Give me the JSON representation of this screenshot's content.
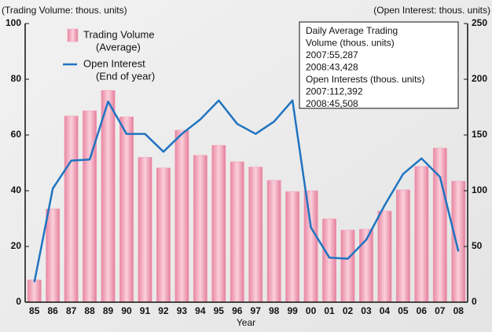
{
  "chart_data": {
    "type": "bar-line",
    "y_label": "(Trading Volume: thous. units)",
    "y2_label": "(Open Interest: thous. units)",
    "x_label": "Year",
    "categories": [
      "85",
      "86",
      "87",
      "88",
      "89",
      "90",
      "91",
      "92",
      "93",
      "94",
      "95",
      "96",
      "97",
      "98",
      "99",
      "00",
      "01",
      "02",
      "03",
      "04",
      "05",
      "06",
      "07",
      "08"
    ],
    "series": [
      {
        "name": "Trading Volume",
        "name_note": "(Average)",
        "type": "bar",
        "color": "#f09cb4",
        "axis": "y",
        "values": [
          8,
          33.5,
          66.8,
          68.7,
          76,
          66.5,
          52,
          48.2,
          61.7,
          52.7,
          56.3,
          50.4,
          48.5,
          43.7,
          39.7,
          40,
          29.9,
          25.9,
          26.2,
          32.7,
          40.3,
          48.7,
          55.287,
          43.428
        ]
      },
      {
        "name": "Open Interest",
        "name_note": "(End of year)",
        "type": "line",
        "color": "#1f74c0",
        "axis": "y2",
        "values": [
          18,
          102,
          127,
          128,
          180,
          151,
          151,
          135,
          151,
          164,
          181,
          160,
          151,
          162,
          181,
          67,
          40,
          39,
          56,
          87,
          115,
          129,
          112.392,
          45.508
        ]
      }
    ],
    "ylim": [
      0,
      100
    ],
    "yticks": [
      0,
      20,
      40,
      60,
      80,
      100
    ],
    "y2lim": [
      0,
      250
    ],
    "y2ticks": [
      0,
      50,
      100,
      150,
      200,
      250
    ],
    "annotation": [
      "Daily Average Trading",
      "Volume (thous. units)",
      "2007:55,287",
      "2008:43,428",
      "Open Interests (thous. units)",
      "2007:112,392",
      "2008:45,508"
    ]
  }
}
